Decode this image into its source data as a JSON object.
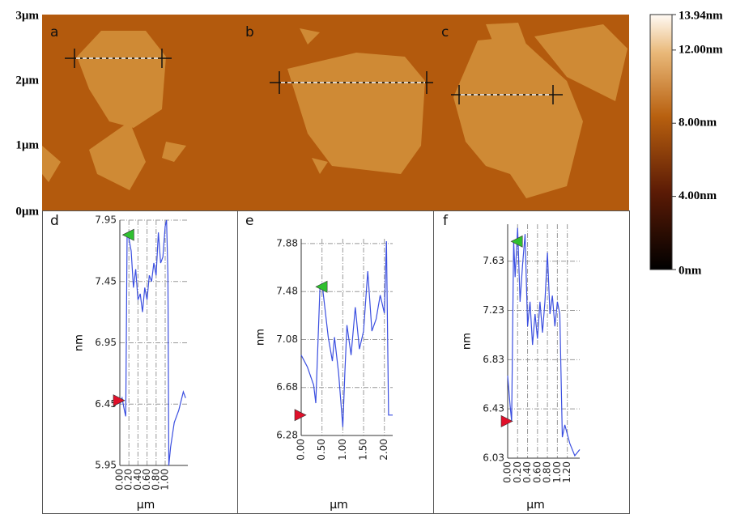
{
  "images": {
    "labels": [
      "a",
      "b",
      "c"
    ],
    "axis_ticks": [
      "3µm",
      "2µm",
      "1µm",
      "0µm"
    ]
  },
  "colorbar": {
    "clim": [
      0,
      13.94
    ],
    "ticks": [
      {
        "value": 13.94,
        "label": "13.94nm"
      },
      {
        "value": 12,
        "label": "12.00nm"
      },
      {
        "value": 8,
        "label": "8.00nm"
      },
      {
        "value": 4,
        "label": "4.00nm"
      },
      {
        "value": 0,
        "label": "0nm"
      }
    ]
  },
  "chart_data": [
    {
      "type": "line",
      "label": "d",
      "xlabel": "µm",
      "ylabel": "nm",
      "color": "#3b4fe0",
      "grid": true,
      "x": [
        0,
        0.05,
        0.1,
        0.13,
        0.16,
        0.2,
        0.25,
        0.3,
        0.35,
        0.4,
        0.45,
        0.5,
        0.55,
        0.6,
        0.65,
        0.7,
        0.75,
        0.8,
        0.85,
        0.9,
        0.95,
        1.0,
        1.03,
        1.06,
        1.08,
        1.12,
        1.2,
        1.3,
        1.4,
        1.45
      ],
      "values": [
        6.45,
        6.5,
        6.4,
        6.35,
        7.85,
        7.8,
        7.7,
        7.4,
        7.55,
        7.3,
        7.35,
        7.2,
        7.4,
        7.3,
        7.5,
        7.45,
        7.6,
        7.5,
        7.85,
        7.6,
        7.65,
        7.9,
        7.95,
        7.5,
        5.95,
        6.1,
        6.3,
        6.4,
        6.55,
        6.5
      ],
      "markers": [
        {
          "x": 0,
          "y": 6.48,
          "color": "#e0102a"
        },
        {
          "x": 0.15,
          "y": 7.83,
          "color": "#2fc02f"
        }
      ],
      "xlim": [
        0,
        1.5
      ],
      "ylim": [
        5.95,
        7.95
      ],
      "xticks": [
        {
          "value": 0,
          "label": "0.00"
        },
        {
          "value": 0.2,
          "label": "0.20"
        },
        {
          "value": 0.4,
          "label": "0.40"
        },
        {
          "value": 0.6,
          "label": "0.60"
        },
        {
          "value": 0.8,
          "label": "0.80"
        },
        {
          "value": 1.0,
          "label": "1.00"
        }
      ],
      "yticks": [
        5.95,
        6.45,
        6.95,
        7.45,
        7.95
      ]
    },
    {
      "type": "line",
      "label": "e",
      "xlabel": "µm",
      "ylabel": "nm",
      "color": "#3b4fe0",
      "grid": true,
      "x": [
        0,
        0.15,
        0.3,
        0.35,
        0.45,
        0.5,
        0.55,
        0.65,
        0.75,
        0.8,
        0.9,
        1.0,
        1.05,
        1.1,
        1.2,
        1.3,
        1.4,
        1.5,
        1.6,
        1.7,
        1.8,
        1.9,
        2.0,
        2.05,
        2.1,
        2.2
      ],
      "values": [
        6.95,
        6.85,
        6.7,
        6.55,
        7.5,
        7.55,
        7.4,
        7.1,
        6.9,
        7.1,
        6.8,
        6.35,
        6.8,
        7.2,
        6.95,
        7.35,
        7.0,
        7.15,
        7.65,
        7.15,
        7.25,
        7.45,
        7.3,
        7.9,
        6.45,
        6.45
      ],
      "markers": [
        {
          "x": 0,
          "y": 6.45,
          "color": "#e0102a"
        },
        {
          "x": 0.45,
          "y": 7.52,
          "color": "#2fc02f"
        }
      ],
      "xlim": [
        0,
        2.2
      ],
      "ylim": [
        6.28,
        7.92
      ],
      "xticks": [
        {
          "value": 0,
          "label": "0.00"
        },
        {
          "value": 0.5,
          "label": "0.50"
        },
        {
          "value": 1.0,
          "label": "1.00"
        },
        {
          "value": 1.5,
          "label": "1.50"
        },
        {
          "value": 2.0,
          "label": "2.00"
        }
      ],
      "yticks": [
        6.28,
        6.68,
        7.08,
        7.48,
        7.88
      ]
    },
    {
      "type": "line",
      "label": "f",
      "xlabel": "µm",
      "ylabel": "nm",
      "color": "#3b4fe0",
      "grid": true,
      "x": [
        0,
        0.05,
        0.08,
        0.12,
        0.15,
        0.2,
        0.25,
        0.3,
        0.35,
        0.4,
        0.45,
        0.5,
        0.55,
        0.6,
        0.65,
        0.7,
        0.75,
        0.8,
        0.85,
        0.9,
        0.95,
        1.0,
        1.05,
        1.1,
        1.15,
        1.25,
        1.35,
        1.45
      ],
      "values": [
        6.7,
        6.45,
        6.33,
        7.8,
        7.5,
        7.9,
        7.3,
        7.6,
        7.85,
        7.1,
        7.3,
        6.95,
        7.2,
        7.0,
        7.3,
        7.05,
        7.3,
        7.7,
        7.2,
        7.35,
        7.1,
        7.3,
        7.2,
        6.2,
        6.3,
        6.15,
        6.05,
        6.1
      ],
      "markers": [
        {
          "x": 0,
          "y": 6.33,
          "color": "#e0102a"
        },
        {
          "x": 0.15,
          "y": 7.79,
          "color": "#2fc02f"
        }
      ],
      "xlim": [
        0,
        1.45
      ],
      "ylim": [
        6.03,
        7.93
      ],
      "xticks": [
        {
          "value": 0,
          "label": "0.00"
        },
        {
          "value": 0.2,
          "label": "0.20"
        },
        {
          "value": 0.4,
          "label": "0.40"
        },
        {
          "value": 0.6,
          "label": "0.60"
        },
        {
          "value": 0.8,
          "label": "0.80"
        },
        {
          "value": 1.0,
          "label": "1.00"
        },
        {
          "value": 1.2,
          "label": "1.20"
        }
      ],
      "yticks": [
        6.03,
        6.43,
        6.83,
        7.23,
        7.63
      ]
    }
  ]
}
